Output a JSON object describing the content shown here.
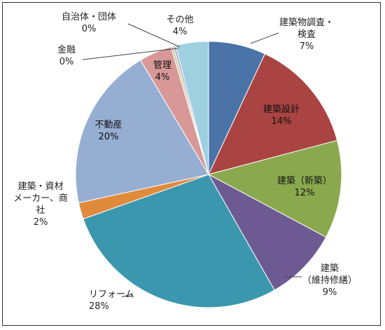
{
  "chart_data": {
    "type": "pie",
    "start_angle_deg": 0,
    "direction": "clockwise",
    "slices": [
      {
        "label_lines": [
          "建築物調査・",
          "検査"
        ],
        "value": 7,
        "display": "7%",
        "color": "#4a73a7"
      },
      {
        "label_lines": [
          "建築設計"
        ],
        "value": 14,
        "display": "14%",
        "color": "#a94442"
      },
      {
        "label_lines": [
          "建築（新築）"
        ],
        "value": 12,
        "display": "12%",
        "color": "#8aa94e"
      },
      {
        "label_lines": [
          "建築",
          "（維持修繕）"
        ],
        "value": 9,
        "display": "9%",
        "color": "#6e5a92"
      },
      {
        "label_lines": [
          "リフォーム"
        ],
        "value": 28,
        "display": "28%",
        "color": "#3b97ad"
      },
      {
        "label_lines": [
          "建築・資材",
          "メーカー、商",
          "社"
        ],
        "value": 2,
        "display": "2%",
        "color": "#e08a3c"
      },
      {
        "label_lines": [
          "不動産"
        ],
        "value": 20,
        "display": "20%",
        "color": "#97aed3"
      },
      {
        "label_lines": [
          "管理"
        ],
        "value": 4,
        "display": "4%",
        "color": "#d79897"
      },
      {
        "label_lines": [
          "金融"
        ],
        "value": 0.3,
        "display": "0%",
        "color": "#c5d4a1"
      },
      {
        "label_lines": [
          "自治体・団体"
        ],
        "value": 0.3,
        "display": "0%",
        "color": "#b9add1"
      },
      {
        "label_lines": [
          "その他"
        ],
        "value": 4,
        "display": "4%",
        "color": "#9fd0e0"
      }
    ]
  }
}
